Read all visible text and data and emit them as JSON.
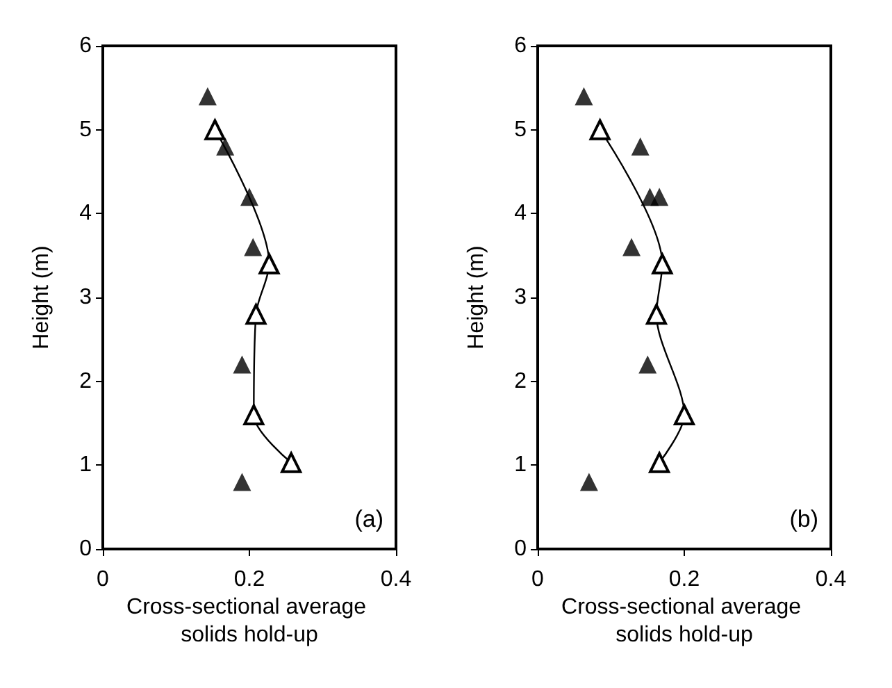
{
  "chart_data": [
    {
      "type": "scatter",
      "xlabel": "Cross-sectional average solids hold-up",
      "ylabel": "Height (m)",
      "annotations": [
        "(a)"
      ],
      "xlim": [
        0,
        0.4
      ],
      "xticks": [
        0,
        0.2,
        0.4
      ],
      "ylim": [
        0,
        6
      ],
      "yticks": [
        0,
        1,
        2,
        3,
        4,
        5,
        6
      ],
      "grid": false,
      "marker": "triangle",
      "series": [
        {
          "color": "#000000",
          "x": [
            0.143,
            0.167,
            0.2,
            0.205,
            0.19,
            0.19
          ],
          "values": [
            5.4,
            4.8,
            4.2,
            3.6,
            2.2,
            0.8
          ]
        },
        {
          "type": "line",
          "color": "#000000",
          "x": [
            0.153,
            0.227,
            0.209,
            0.206,
            0.257
          ],
          "values": [
            5.0,
            3.4,
            2.8,
            1.6,
            1.03
          ]
        }
      ]
    },
    {
      "type": "scatter",
      "xlabel": "Cross-sectional average solids hold-up",
      "ylabel": "Height (m)",
      "annotations": [
        "(b)"
      ],
      "xlim": [
        0,
        0.4
      ],
      "xticks": [
        0,
        0.2,
        0.4
      ],
      "ylim": [
        0,
        6
      ],
      "yticks": [
        0,
        1,
        2,
        3,
        4,
        5,
        6
      ],
      "grid": false,
      "marker": "triangle",
      "series": [
        {
          "color": "#000000",
          "x": [
            0.063,
            0.14,
            0.153,
            0.166,
            0.128,
            0.15,
            0.07
          ],
          "values": [
            5.4,
            4.8,
            4.2,
            4.2,
            3.6,
            2.2,
            0.8
          ]
        },
        {
          "type": "line",
          "color": "#000000",
          "x": [
            0.085,
            0.17,
            0.162,
            0.2,
            0.166
          ],
          "values": [
            5.0,
            3.4,
            2.8,
            1.6,
            1.03
          ]
        }
      ]
    }
  ]
}
